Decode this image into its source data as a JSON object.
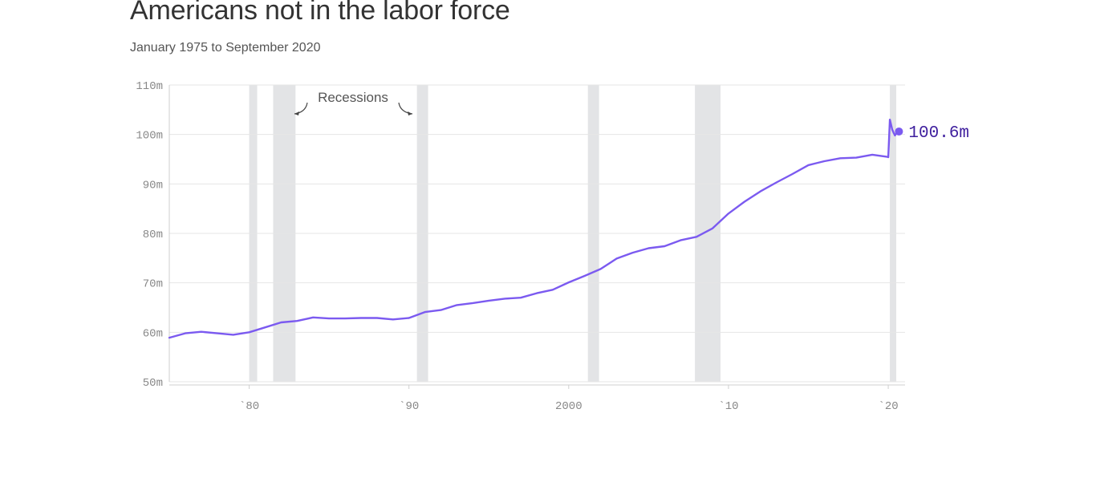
{
  "title": "Americans not in the labor force",
  "subtitle": "January 1975 to September 2020",
  "colors": {
    "line": "#7b5af0",
    "end_label": "#3f1f9e",
    "recession": "#e3e4e6",
    "grid": "#e6e6e6",
    "axis": "#cfcfcf",
    "tick": "#888888"
  },
  "chart_data": {
    "type": "line",
    "x_unit": "year",
    "xlim": [
      1975,
      2020.75
    ],
    "ylim": [
      50,
      110
    ],
    "y_ticks": [
      {
        "value": 50,
        "label": "50m"
      },
      {
        "value": 60,
        "label": "60m"
      },
      {
        "value": 70,
        "label": "70m"
      },
      {
        "value": 80,
        "label": "80m"
      },
      {
        "value": 90,
        "label": "90m"
      },
      {
        "value": 100,
        "label": "100m"
      },
      {
        "value": 110,
        "label": "110m"
      }
    ],
    "x_ticks": [
      {
        "value": 1980,
        "label": "`80"
      },
      {
        "value": 1990,
        "label": "`90"
      },
      {
        "value": 2000,
        "label": "2000"
      },
      {
        "value": 2010,
        "label": "`10"
      },
      {
        "value": 2020,
        "label": "`20"
      }
    ],
    "grid": "horizontal",
    "recessions": [
      {
        "start": 1980.0,
        "end": 1980.5
      },
      {
        "start": 1981.5,
        "end": 1982.9
      },
      {
        "start": 1990.5,
        "end": 1991.2
      },
      {
        "start": 2001.2,
        "end": 2001.9
      },
      {
        "start": 2007.9,
        "end": 2009.5
      },
      {
        "start": 2020.1,
        "end": 2020.5
      }
    ],
    "recession_label": "Recessions",
    "series": [
      {
        "x": [
          1975.0,
          1976.0,
          1977.0,
          1978.0,
          1979.0,
          1980.0,
          1981.0,
          1982.0,
          1983.0,
          1984.0,
          1985.0,
          1986.0,
          1987.0,
          1988.0,
          1989.0,
          1990.0,
          1991.0,
          1992.0,
          1993.0,
          1994.0,
          1995.0,
          1996.0,
          1997.0,
          1998.0,
          1999.0,
          2000.0,
          2001.0,
          2002.0,
          2003.0,
          2004.0,
          2005.0,
          2006.0,
          2007.0,
          2008.0,
          2009.0,
          2010.0,
          2011.0,
          2012.0,
          2013.0,
          2014.0,
          2015.0,
          2016.0,
          2017.0,
          2018.0,
          2019.0,
          2019.9,
          2020.0,
          2020.1,
          2020.25,
          2020.33,
          2020.42,
          2020.5,
          2020.58,
          2020.67
        ],
        "y": [
          58.9,
          59.8,
          60.1,
          59.8,
          59.5,
          60.0,
          61.0,
          62.0,
          62.3,
          63.0,
          62.8,
          62.8,
          62.9,
          62.9,
          62.6,
          62.9,
          64.1,
          64.5,
          65.5,
          65.9,
          66.4,
          66.8,
          67.0,
          67.9,
          68.6,
          70.1,
          71.4,
          72.8,
          74.9,
          76.1,
          77.0,
          77.4,
          78.6,
          79.3,
          81.0,
          84.0,
          86.4,
          88.5,
          90.3,
          92.0,
          93.8,
          94.6,
          95.2,
          95.3,
          95.9,
          95.5,
          95.4,
          103.0,
          101.0,
          100.4,
          99.8,
          100.2,
          100.1,
          100.6
        ]
      }
    ],
    "end_label": "100.6m"
  }
}
